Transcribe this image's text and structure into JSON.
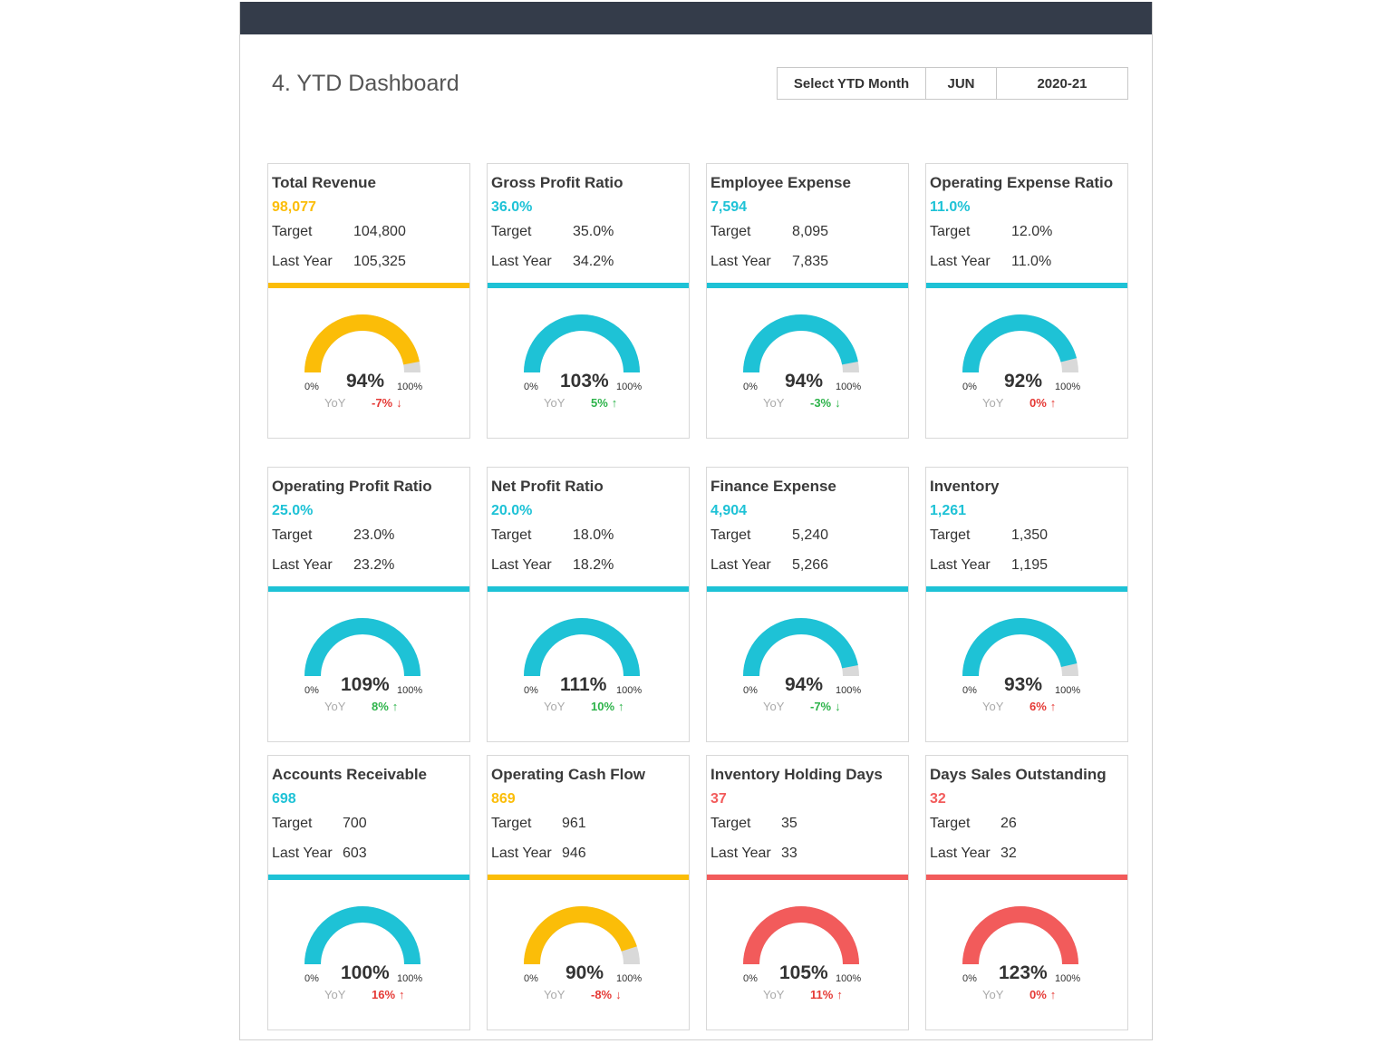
{
  "header": {
    "title": "4. YTD Dashboard",
    "select_label": "Select YTD Month",
    "month": "JUN",
    "year": "2020-21"
  },
  "colors": {
    "teal": "#1ec2d6",
    "amber": "#fbbd08",
    "red": "#f25b5b",
    "gauge_track": "#d9d9d9",
    "topbar": "#343c4a",
    "positive": "#2db34a",
    "negative": "#e53935"
  },
  "labels": {
    "target": "Target",
    "last_year": "Last Year",
    "yoy": "YoY",
    "zero": "0%",
    "hundred": "100%"
  },
  "cards": [
    {
      "name": "Total Revenue",
      "value": "98,077",
      "target": "104,800",
      "last_year": "105,325",
      "pct": "94%",
      "fill": 0.94,
      "yoy": "-7%",
      "arrow": "↓",
      "status": "amber",
      "yoy_color": "negative"
    },
    {
      "name": "Gross Profit Ratio",
      "value": "36.0%",
      "target": "35.0%",
      "last_year": "34.2%",
      "pct": "103%",
      "fill": 1.0,
      "yoy": "5%",
      "arrow": "↑",
      "status": "teal",
      "yoy_color": "positive"
    },
    {
      "name": "Employee Expense",
      "value": "7,594",
      "target": "8,095",
      "last_year": "7,835",
      "pct": "94%",
      "fill": 0.94,
      "yoy": "-3%",
      "arrow": "↓",
      "status": "teal",
      "yoy_color": "positive"
    },
    {
      "name": "Operating Expense Ratio",
      "value": "11.0%",
      "target": "12.0%",
      "last_year": "11.0%",
      "pct": "92%",
      "fill": 0.92,
      "yoy": "0%",
      "arrow": "↑",
      "status": "teal",
      "yoy_color": "negative"
    },
    {
      "name": "Operating Profit Ratio",
      "value": "25.0%",
      "target": "23.0%",
      "last_year": "23.2%",
      "pct": "109%",
      "fill": 1.0,
      "yoy": "8%",
      "arrow": "↑",
      "status": "teal",
      "yoy_color": "positive"
    },
    {
      "name": "Net Profit Ratio",
      "value": "20.0%",
      "target": "18.0%",
      "last_year": "18.2%",
      "pct": "111%",
      "fill": 1.0,
      "yoy": "10%",
      "arrow": "↑",
      "status": "teal",
      "yoy_color": "positive"
    },
    {
      "name": "Finance Expense",
      "value": "4,904",
      "target": "5,240",
      "last_year": "5,266",
      "pct": "94%",
      "fill": 0.94,
      "yoy": "-7%",
      "arrow": "↓",
      "status": "teal",
      "yoy_color": "positive"
    },
    {
      "name": "Inventory",
      "value": "1,261",
      "target": "1,350",
      "last_year": "1,195",
      "pct": "93%",
      "fill": 0.93,
      "yoy": "6%",
      "arrow": "↑",
      "status": "teal",
      "yoy_color": "negative"
    },
    {
      "name": "Accounts Receivable",
      "value": "698",
      "target": "700",
      "last_year": "603",
      "pct": "100%",
      "fill": 1.0,
      "yoy": "16%",
      "arrow": "↑",
      "status": "teal",
      "yoy_color": "negative"
    },
    {
      "name": "Operating Cash Flow",
      "value": "869",
      "target": "961",
      "last_year": "946",
      "pct": "90%",
      "fill": 0.9,
      "yoy": "-8%",
      "arrow": "↓",
      "status": "amber",
      "yoy_color": "negative"
    },
    {
      "name": "Inventory Holding Days",
      "value": "37",
      "target": "35",
      "last_year": "33",
      "pct": "105%",
      "fill": 1.0,
      "yoy": "11%",
      "arrow": "↑",
      "status": "red",
      "yoy_color": "negative"
    },
    {
      "name": "Days Sales Outstanding",
      "value": "32",
      "target": "26",
      "last_year": "32",
      "pct": "123%",
      "fill": 1.0,
      "yoy": "0%",
      "arrow": "↑",
      "status": "red",
      "yoy_color": "negative"
    }
  ]
}
